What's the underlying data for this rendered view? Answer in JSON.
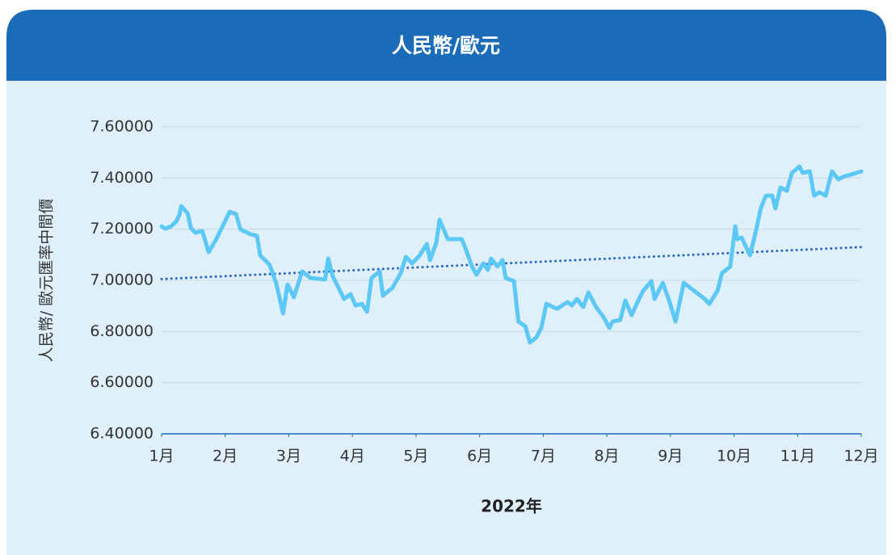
{
  "chart_data": {
    "type": "line",
    "title": "人民幣/歐元",
    "y_label": "人民幣/ 歐元匯率中間價",
    "x_label": "2022年",
    "xlim": [
      1,
      12
    ],
    "xticks": [
      {
        "value": 1,
        "label": "1月"
      },
      {
        "value": 2,
        "label": "2月"
      },
      {
        "value": 3,
        "label": "3月"
      },
      {
        "value": 4,
        "label": "4月"
      },
      {
        "value": 5,
        "label": "5月"
      },
      {
        "value": 6,
        "label": "6月"
      },
      {
        "value": 7,
        "label": "7月"
      },
      {
        "value": 8,
        "label": "8月"
      },
      {
        "value": 9,
        "label": "9月"
      },
      {
        "value": 10,
        "label": "10月"
      },
      {
        "value": 11,
        "label": "11月"
      },
      {
        "value": 12,
        "label": "12月"
      }
    ],
    "ylim": [
      6.4,
      7.6
    ],
    "yticks": [
      {
        "value": 6.4,
        "label": "6.40000"
      },
      {
        "value": 6.6,
        "label": "6.60000"
      },
      {
        "value": 6.8,
        "label": "6.80000"
      },
      {
        "value": 7.0,
        "label": "7.00000"
      },
      {
        "value": 7.2,
        "label": "7.20000"
      },
      {
        "value": 7.4,
        "label": "7.40000"
      },
      {
        "value": 7.6,
        "label": "7.60000"
      }
    ],
    "grid": true,
    "x": [
      1.0,
      1.06,
      1.15,
      1.23,
      1.28,
      1.31,
      1.41,
      1.46,
      1.53,
      1.64,
      1.74,
      1.86,
      2.07,
      2.17,
      2.24,
      2.4,
      2.5,
      2.55,
      2.7,
      2.8,
      2.91,
      2.98,
      3.08,
      3.21,
      3.34,
      3.46,
      3.57,
      3.62,
      3.69,
      3.87,
      3.97,
      4.05,
      4.15,
      4.23,
      4.3,
      4.43,
      4.48,
      4.63,
      4.76,
      4.84,
      4.94,
      5.06,
      5.17,
      5.22,
      5.32,
      5.37,
      5.5,
      5.65,
      5.72,
      5.8,
      5.88,
      5.95,
      6.06,
      6.13,
      6.18,
      6.28,
      6.36,
      6.41,
      6.54,
      6.61,
      6.72,
      6.79,
      6.89,
      6.97,
      7.05,
      7.15,
      7.22,
      7.38,
      7.45,
      7.53,
      7.63,
      7.71,
      7.83,
      7.96,
      8.04,
      8.09,
      8.21,
      8.29,
      8.39,
      8.47,
      8.57,
      8.7,
      8.75,
      8.88,
      8.98,
      9.08,
      9.21,
      9.54,
      9.61,
      9.74,
      9.81,
      9.94,
      10.02,
      10.05,
      10.12,
      10.25,
      10.35,
      10.42,
      10.5,
      10.6,
      10.65,
      10.73,
      10.83,
      10.91,
      11.03,
      11.08,
      11.19,
      11.26,
      11.34,
      11.44,
      11.54,
      11.64,
      11.74,
      11.85,
      12.0
    ],
    "series": [
      {
        "color": "#5bc8f5",
        "values": [
          7.211,
          7.202,
          7.211,
          7.23,
          7.256,
          7.29,
          7.262,
          7.205,
          7.186,
          7.193,
          7.11,
          7.161,
          7.268,
          7.259,
          7.199,
          7.18,
          7.174,
          7.098,
          7.06,
          6.99,
          6.871,
          6.984,
          6.934,
          7.035,
          7.009,
          7.006,
          7.003,
          7.085,
          7.016,
          6.927,
          6.946,
          6.902,
          6.908,
          6.877,
          7.009,
          7.035,
          6.94,
          6.971,
          7.028,
          7.092,
          7.066,
          7.098,
          7.142,
          7.079,
          7.148,
          7.237,
          7.161,
          7.161,
          7.161,
          7.11,
          7.054,
          7.022,
          7.066,
          7.041,
          7.085,
          7.054,
          7.079,
          7.009,
          6.997,
          6.839,
          6.82,
          6.757,
          6.776,
          6.814,
          6.908,
          6.896,
          6.889,
          6.915,
          6.902,
          6.927,
          6.896,
          6.953,
          6.896,
          6.852,
          6.814,
          6.839,
          6.845,
          6.921,
          6.864,
          6.908,
          6.959,
          6.997,
          6.927,
          6.99,
          6.921,
          6.839,
          6.99,
          6.927,
          6.908,
          6.959,
          7.028,
          7.054,
          7.211,
          7.161,
          7.167,
          7.098,
          7.199,
          7.281,
          7.331,
          7.331,
          7.281,
          7.363,
          7.35,
          7.42,
          7.445,
          7.42,
          7.426,
          7.331,
          7.344,
          7.331,
          7.426,
          7.395,
          7.407,
          7.414,
          7.426
        ]
      }
    ],
    "trendline": {
      "color": "#2e6bbf",
      "x": [
        1,
        12
      ],
      "values": [
        7.005,
        7.13
      ]
    }
  }
}
